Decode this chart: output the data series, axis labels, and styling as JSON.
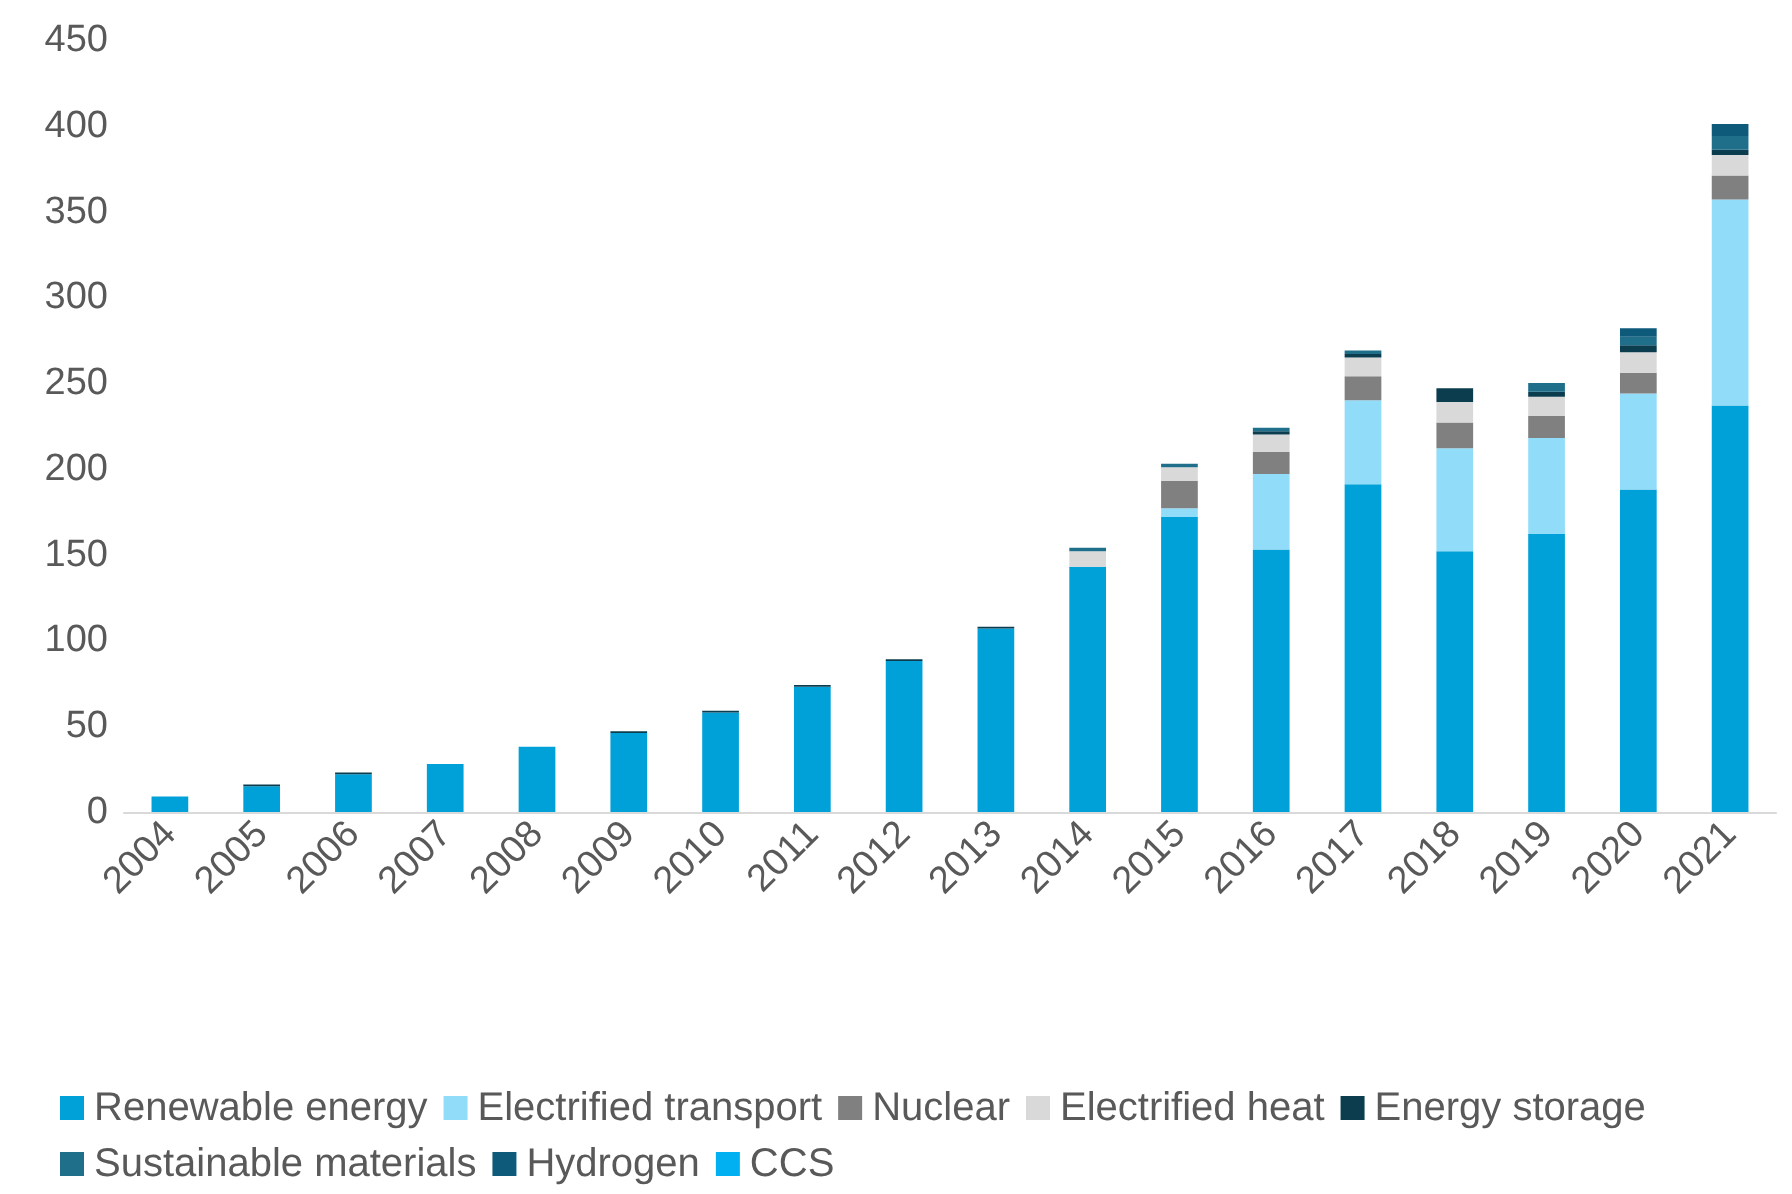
{
  "chart_data": {
    "type": "bar",
    "stacked": true,
    "categories": [
      "2004",
      "2005",
      "2006",
      "2007",
      "2008",
      "2009",
      "2010",
      "2011",
      "2012",
      "2013",
      "2014",
      "2015",
      "2016",
      "2017",
      "2018",
      "2019",
      "2020",
      "2021"
    ],
    "series": [
      {
        "name": "Renewable energy",
        "color": "#00a0d9",
        "values": [
          9,
          15,
          22,
          28,
          38,
          46,
          58,
          73,
          88,
          107,
          143,
          172,
          153,
          191,
          152,
          162,
          188,
          237
        ]
      },
      {
        "name": "Electrified transport",
        "color": "#91dcf8",
        "values": [
          0,
          0,
          0,
          0,
          0,
          0,
          0,
          0,
          0,
          0,
          0,
          5,
          44,
          49,
          60,
          56,
          56,
          120
        ]
      },
      {
        "name": "Nuclear",
        "color": "#808080",
        "values": [
          0,
          0,
          0,
          0,
          0,
          0,
          0,
          0,
          0,
          0,
          0,
          16,
          13,
          14,
          15,
          13,
          12,
          14
        ]
      },
      {
        "name": "Electrified heat",
        "color": "#d9d9d9",
        "values": [
          0,
          0,
          0,
          0,
          0,
          0,
          0,
          0,
          0,
          0,
          9,
          8,
          10,
          11,
          12,
          11,
          12,
          12
        ]
      },
      {
        "name": "Energy storage",
        "color": "#0b3d4f",
        "values": [
          0,
          1,
          1,
          0,
          0,
          1,
          1,
          1,
          1,
          1,
          0,
          0,
          2,
          2,
          8,
          3,
          4,
          3
        ]
      },
      {
        "name": "Sustainable materials",
        "color": "#1f6f8b",
        "values": [
          0,
          0,
          0,
          0,
          0,
          0,
          0,
          0,
          0,
          0,
          2,
          2,
          2,
          2,
          0,
          5,
          5,
          8
        ]
      },
      {
        "name": "Hydrogen",
        "color": "#0e5a7a",
        "values": [
          0,
          0,
          0,
          0,
          0,
          0,
          0,
          0,
          0,
          0,
          0,
          0,
          0,
          0,
          0,
          0,
          5,
          7
        ]
      },
      {
        "name": "CCS",
        "color": "#00b0f0",
        "values": [
          0,
          0,
          0,
          0,
          0,
          0,
          0,
          0,
          0,
          0,
          0,
          0,
          0,
          0,
          0,
          0,
          0,
          0
        ]
      }
    ],
    "ylim": [
      0,
      450
    ],
    "yticks": [
      0,
      50,
      100,
      150,
      200,
      250,
      300,
      350,
      400,
      450
    ],
    "grid": false,
    "legend": "bottom"
  }
}
